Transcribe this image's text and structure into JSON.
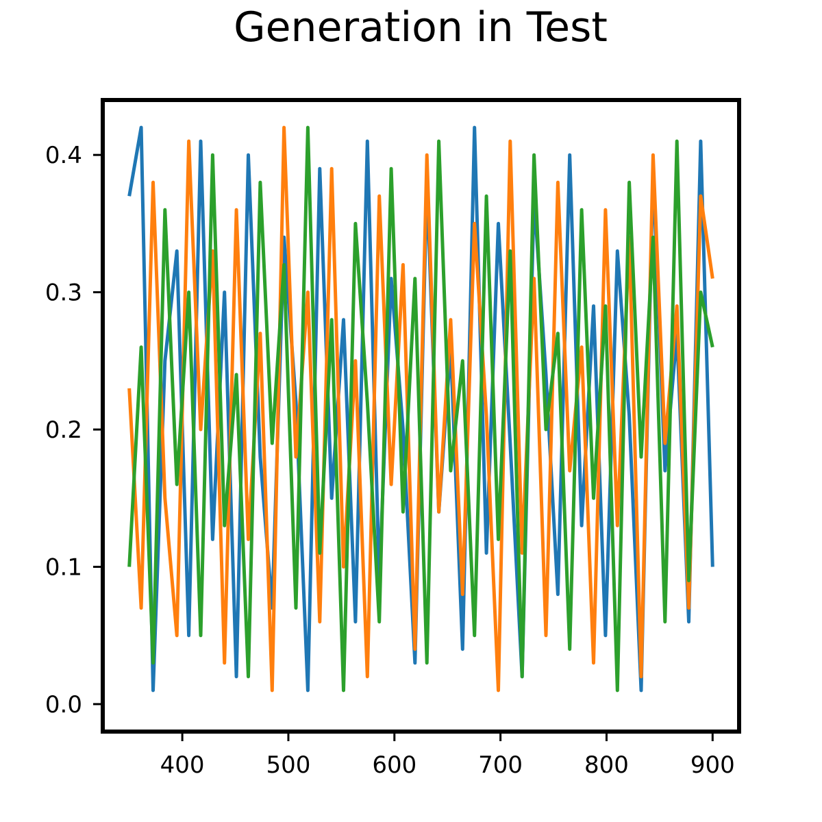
{
  "chart_data": {
    "type": "line",
    "title": "Generation in Test",
    "xlabel": "",
    "ylabel": "",
    "xlim": [
      325,
      925
    ],
    "ylim": [
      -0.02,
      0.44
    ],
    "x_ticks": [
      400,
      500,
      600,
      700,
      800,
      900
    ],
    "y_ticks": [
      0.0,
      0.1,
      0.2,
      0.3,
      0.4
    ],
    "x_tick_labels": [
      "400",
      "500",
      "600",
      "700",
      "800",
      "900"
    ],
    "y_tick_labels": [
      "0.0",
      "0.1",
      "0.2",
      "0.3",
      "0.4"
    ],
    "grid": false,
    "legend": "none",
    "x": {
      "start": 350,
      "end": 900,
      "step": 1
    },
    "series": [
      {
        "color": "#1f77b4",
        "seed": 11,
        "note_min": 0.0,
        "note_max": 0.42,
        "values": [
          0.37,
          0.42,
          0.01,
          0.25,
          0.33,
          0.05,
          0.41,
          0.12,
          0.3,
          0.02,
          0.4,
          0.18,
          0.07,
          0.34,
          0.22,
          0.01,
          0.39,
          0.15,
          0.28,
          0.06,
          0.41,
          0.09,
          0.31,
          0.2,
          0.03,
          0.38,
          0.14,
          0.26,
          0.04,
          0.42,
          0.11,
          0.35,
          0.19,
          0.02,
          0.37,
          0.24,
          0.08,
          0.4,
          0.13,
          0.29,
          0.05,
          0.33,
          0.21,
          0.01,
          0.39,
          0.17,
          0.27,
          0.06,
          0.41,
          0.1
        ]
      },
      {
        "color": "#ff7f0e",
        "seed": 23,
        "note_min": 0.0,
        "note_max": 0.42,
        "values": [
          0.23,
          0.07,
          0.38,
          0.15,
          0.05,
          0.41,
          0.2,
          0.33,
          0.03,
          0.36,
          0.12,
          0.27,
          0.01,
          0.42,
          0.18,
          0.3,
          0.06,
          0.39,
          0.1,
          0.25,
          0.02,
          0.37,
          0.16,
          0.32,
          0.04,
          0.4,
          0.14,
          0.28,
          0.08,
          0.35,
          0.21,
          0.01,
          0.41,
          0.11,
          0.31,
          0.05,
          0.38,
          0.17,
          0.26,
          0.03,
          0.36,
          0.13,
          0.34,
          0.02,
          0.4,
          0.19,
          0.29,
          0.07,
          0.37,
          0.31
        ]
      },
      {
        "color": "#2ca02c",
        "seed": 37,
        "note_min": 0.0,
        "note_max": 0.42,
        "values": [
          0.1,
          0.26,
          0.03,
          0.36,
          0.16,
          0.3,
          0.05,
          0.4,
          0.13,
          0.24,
          0.02,
          0.38,
          0.19,
          0.32,
          0.07,
          0.42,
          0.11,
          0.28,
          0.01,
          0.35,
          0.22,
          0.06,
          0.39,
          0.14,
          0.31,
          0.03,
          0.41,
          0.17,
          0.25,
          0.05,
          0.37,
          0.12,
          0.33,
          0.02,
          0.4,
          0.2,
          0.27,
          0.04,
          0.36,
          0.15,
          0.29,
          0.01,
          0.38,
          0.18,
          0.34,
          0.06,
          0.41,
          0.09,
          0.3,
          0.26
        ]
      }
    ]
  }
}
